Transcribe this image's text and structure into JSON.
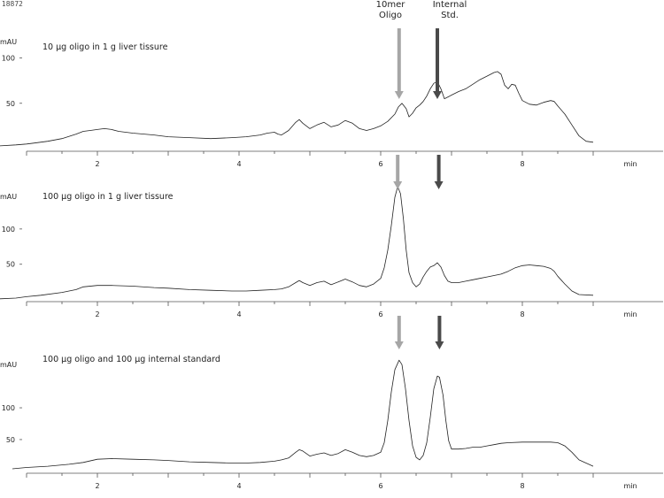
{
  "figure_id": "18872",
  "annotations": {
    "oligo_label_line1": "10mer",
    "oligo_label_line2": "Oligo",
    "std_label_line1": "Internal",
    "std_label_line2": "Std."
  },
  "colors": {
    "oligo_arrow": "#a6a6a6",
    "std_arrow": "#4a4a4a",
    "trace": "#222222"
  },
  "chart_data": [
    {
      "type": "line",
      "title": "10 µg oligo in 1 g liver tissure",
      "xlabel": "min",
      "ylabel": "mAU",
      "xlim": [
        0,
        9
      ],
      "ylim": [
        -3,
        125
      ],
      "x_ticks": [
        2,
        4,
        6,
        8
      ],
      "y_ticks": [
        50,
        100
      ],
      "markers": {
        "oligo_peak_min": 6.26,
        "std_peak_min": 6.8
      },
      "series": [
        {
          "x": [
            0,
            0.5,
            0.85,
            1.0,
            1.1,
            1.3,
            1.5,
            1.7,
            1.8,
            1.9,
            2.0,
            2.1,
            2.2,
            2.3,
            2.5,
            2.8,
            3.0,
            3.3,
            3.6,
            3.9,
            4.1,
            4.3,
            4.4,
            4.5,
            4.55,
            4.6,
            4.7,
            4.8,
            4.85,
            4.9,
            5.0,
            5.1,
            5.2,
            5.3,
            5.4,
            5.5,
            5.6,
            5.7,
            5.8,
            5.9,
            6.0,
            6.1,
            6.2,
            6.25,
            6.3,
            6.36,
            6.4,
            6.45,
            6.5,
            6.55,
            6.6,
            6.65,
            6.7,
            6.75,
            6.8,
            6.85,
            6.9,
            6.95,
            7.0,
            7.1,
            7.2,
            7.3,
            7.4,
            7.5,
            7.6,
            7.65,
            7.7,
            7.75,
            7.8,
            7.85,
            7.9,
            7.95,
            8.0,
            8.1,
            8.2,
            8.3,
            8.4,
            8.45,
            8.5,
            8.6,
            8.7,
            8.8,
            8.9,
            9.0
          ],
          "y": [
            3,
            3,
            4,
            5,
            6,
            8,
            11,
            16,
            19,
            20,
            21,
            22,
            21,
            19,
            17,
            15,
            13,
            12,
            11,
            12,
            13,
            15,
            17,
            18,
            16,
            15,
            20,
            29,
            32,
            28,
            22,
            26,
            29,
            24,
            26,
            31,
            28,
            22,
            20,
            22,
            25,
            30,
            38,
            46,
            50,
            44,
            35,
            39,
            45,
            48,
            52,
            58,
            66,
            72,
            74,
            66,
            55,
            57,
            59,
            63,
            66,
            71,
            76,
            80,
            84,
            85,
            82,
            70,
            66,
            71,
            70,
            61,
            53,
            49,
            48,
            51,
            53,
            52,
            47,
            38,
            26,
            14,
            8,
            7
          ]
        }
      ]
    },
    {
      "type": "line",
      "title": "100 µg oligo in 1 g liver tissure",
      "xlabel": "min",
      "ylabel": "mAU",
      "xlim": [
        0,
        9
      ],
      "ylim": [
        -3,
        155
      ],
      "x_ticks": [
        2,
        4,
        6,
        8
      ],
      "y_ticks": [
        50,
        100
      ],
      "markers": {
        "oligo_peak_min": 6.24,
        "std_peak_min": 6.82
      },
      "series": [
        {
          "x": [
            0,
            0.5,
            0.85,
            1.0,
            1.2,
            1.5,
            1.7,
            1.8,
            2.0,
            2.2,
            2.5,
            2.8,
            3.0,
            3.3,
            3.6,
            3.9,
            4.1,
            4.3,
            4.5,
            4.6,
            4.7,
            4.8,
            4.85,
            4.9,
            5.0,
            5.1,
            5.2,
            5.3,
            5.4,
            5.5,
            5.6,
            5.7,
            5.8,
            5.9,
            6.0,
            6.05,
            6.1,
            6.15,
            6.2,
            6.24,
            6.28,
            6.32,
            6.36,
            6.4,
            6.45,
            6.5,
            6.55,
            6.6,
            6.65,
            6.7,
            6.75,
            6.8,
            6.85,
            6.9,
            6.95,
            7.0,
            7.1,
            7.2,
            7.3,
            7.4,
            7.5,
            7.6,
            7.7,
            7.8,
            7.9,
            8.0,
            8.1,
            8.2,
            8.3,
            8.4,
            8.45,
            8.5,
            8.6,
            8.7,
            8.8,
            9.0
          ],
          "y": [
            1,
            1,
            2,
            4,
            6,
            10,
            14,
            18,
            20,
            20,
            19,
            17,
            16,
            14,
            13,
            12,
            12,
            13,
            14,
            15,
            18,
            24,
            27,
            24,
            20,
            24,
            26,
            21,
            25,
            29,
            25,
            20,
            18,
            22,
            30,
            45,
            70,
            105,
            145,
            160,
            150,
            115,
            70,
            38,
            24,
            18,
            22,
            32,
            40,
            46,
            48,
            52,
            46,
            34,
            26,
            24,
            24,
            26,
            28,
            30,
            32,
            34,
            36,
            40,
            45,
            48,
            49,
            48,
            47,
            44,
            40,
            33,
            22,
            12,
            7,
            6
          ]
        }
      ]
    },
    {
      "type": "line",
      "title": "100 µg oligo and 100 µg internal standard",
      "xlabel": "min",
      "ylabel": "mAU",
      "xlim": [
        0,
        9
      ],
      "ylim": [
        -3,
        178
      ],
      "x_ticks": [
        2,
        4,
        6,
        8
      ],
      "y_ticks": [
        50,
        100
      ],
      "markers": {
        "oligo_peak_min": 6.26,
        "std_peak_min": 6.83
      },
      "series": [
        {
          "x": [
            0.8,
            1.0,
            1.3,
            1.6,
            1.8,
            2.0,
            2.2,
            2.5,
            2.8,
            3.0,
            3.3,
            3.6,
            3.9,
            4.1,
            4.3,
            4.5,
            4.6,
            4.7,
            4.8,
            4.85,
            4.9,
            5.0,
            5.1,
            5.2,
            5.3,
            5.4,
            5.5,
            5.6,
            5.7,
            5.8,
            5.9,
            6.0,
            6.05,
            6.1,
            6.15,
            6.2,
            6.26,
            6.3,
            6.35,
            6.4,
            6.45,
            6.5,
            6.55,
            6.6,
            6.65,
            6.7,
            6.75,
            6.8,
            6.83,
            6.88,
            6.92,
            6.96,
            7.0,
            7.1,
            7.2,
            7.3,
            7.4,
            7.5,
            7.6,
            7.7,
            7.8,
            8.0,
            8.2,
            8.4,
            8.5,
            8.6,
            8.7,
            8.8,
            9.0
          ],
          "y": [
            4,
            6,
            8,
            11,
            14,
            19,
            20,
            19,
            18,
            17,
            15,
            14,
            13,
            13,
            14,
            16,
            18,
            21,
            30,
            34,
            32,
            24,
            27,
            29,
            25,
            28,
            34,
            30,
            25,
            23,
            25,
            30,
            45,
            80,
            125,
            160,
            175,
            168,
            130,
            80,
            40,
            22,
            18,
            25,
            45,
            85,
            130,
            150,
            148,
            120,
            80,
            48,
            35,
            35,
            36,
            38,
            38,
            40,
            42,
            44,
            45,
            46,
            46,
            46,
            45,
            40,
            30,
            18,
            8
          ]
        }
      ]
    }
  ]
}
